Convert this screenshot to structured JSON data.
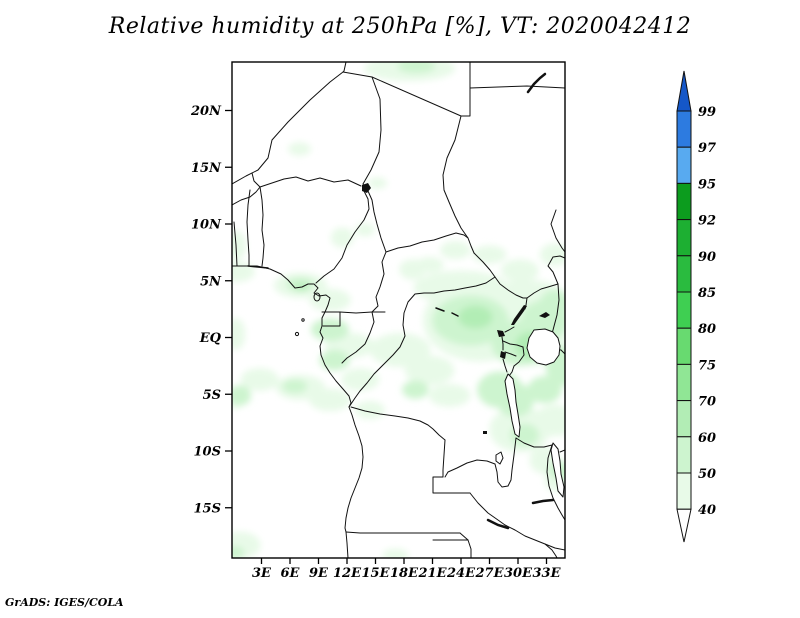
{
  "title": {
    "text": "Relative humidity at 250hPa [%], VT: 2020042412"
  },
  "credit": "GrADS: IGES/COLA",
  "map": {
    "lat_ticks": [
      {
        "value": 20,
        "label": "20N"
      },
      {
        "value": 15,
        "label": "15N"
      },
      {
        "value": 10,
        "label": "10N"
      },
      {
        "value": 5,
        "label": "5N"
      },
      {
        "value": 0,
        "label": "EQ"
      },
      {
        "value": -5,
        "label": "5S"
      },
      {
        "value": -10,
        "label": "10S"
      },
      {
        "value": -15,
        "label": "15S"
      }
    ],
    "lon_ticks": [
      {
        "value": 3,
        "label": "3E"
      },
      {
        "value": 6,
        "label": "6E"
      },
      {
        "value": 9,
        "label": "9E"
      },
      {
        "value": 12,
        "label": "12E"
      },
      {
        "value": 15,
        "label": "15E"
      },
      {
        "value": 18,
        "label": "18E"
      },
      {
        "value": 21,
        "label": "21E"
      },
      {
        "value": 24,
        "label": "24E"
      },
      {
        "value": 27,
        "label": "27E"
      },
      {
        "value": 30,
        "label": "30E"
      },
      {
        "value": 33,
        "label": "33E"
      }
    ]
  },
  "colorbar": {
    "tick_labels_top_to_bottom": [
      "99",
      "97",
      "95",
      "92",
      "90",
      "85",
      "80",
      "75",
      "70",
      "60",
      "50",
      "40"
    ],
    "band_colors_bottom_to_top": [
      "#ffffff",
      "#e8fae8",
      "#cdf4cf",
      "#b2edb5",
      "#90e695",
      "#68da70",
      "#3fcf52",
      "#2abb3f",
      "#1daf32",
      "#0c9c1e",
      "#58aaf0",
      "#2d7be0",
      "#1557c8"
    ]
  },
  "chart_data": {
    "type": "heatmap",
    "title": "Relative humidity at 250hPa [%]",
    "valid_time": "2020042412",
    "variable": "Relative humidity",
    "level_hPa": 250,
    "units": "%",
    "region": {
      "lon_range": [
        0,
        35
      ],
      "lat_range": [
        -19.5,
        24.5
      ]
    },
    "levels": [
      40,
      50,
      60,
      70,
      75,
      80,
      85,
      90,
      92,
      95,
      97,
      99
    ],
    "shaded_cells": [
      {
        "lon": 18.6,
        "lat": 23.7,
        "rx": 4.8,
        "ry": 1.1,
        "band": 1
      },
      {
        "lon": 19.3,
        "lat": 23.9,
        "rx": 2.0,
        "ry": 0.6,
        "band": 2
      },
      {
        "lon": 7.0,
        "lat": 16.6,
        "rx": 1.2,
        "ry": 0.6,
        "band": 1
      },
      {
        "lon": 15.2,
        "lat": 13.6,
        "rx": 1.0,
        "ry": 0.5,
        "band": 1
      },
      {
        "lon": 13.9,
        "lat": 9.5,
        "rx": 1.0,
        "ry": 0.6,
        "band": 1
      },
      {
        "lon": 11.5,
        "lat": 8.8,
        "rx": 1.2,
        "ry": 0.9,
        "band": 1
      },
      {
        "lon": 0.4,
        "lat": 8.1,
        "rx": 1.0,
        "ry": 1.3,
        "band": 1
      },
      {
        "lon": 23.4,
        "lat": 7.7,
        "rx": 1.6,
        "ry": 0.8,
        "band": 1
      },
      {
        "lon": 27.0,
        "lat": 7.3,
        "rx": 1.8,
        "ry": 0.8,
        "band": 1
      },
      {
        "lon": 20.7,
        "lat": 6.4,
        "rx": 1.5,
        "ry": 0.7,
        "band": 1
      },
      {
        "lon": 18.9,
        "lat": 6.0,
        "rx": 1.4,
        "ry": 0.9,
        "band": 1
      },
      {
        "lon": 30.2,
        "lat": 5.9,
        "rx": 2.0,
        "ry": 1.0,
        "band": 1
      },
      {
        "lon": 33.9,
        "lat": 7.3,
        "rx": 1.6,
        "ry": 1.0,
        "band": 1
      },
      {
        "lon": 7.1,
        "lat": 4.6,
        "rx": 2.8,
        "ry": 1.1,
        "band": 1
      },
      {
        "lon": 7.1,
        "lat": 4.7,
        "rx": 1.5,
        "ry": 0.6,
        "band": 2
      },
      {
        "lon": 7.2,
        "lat": 4.4,
        "rx": 0.8,
        "ry": 0.3,
        "band": 3
      },
      {
        "lon": 10.2,
        "lat": 3.3,
        "rx": 2.2,
        "ry": 1.0,
        "band": 1
      },
      {
        "lon": 0.5,
        "lat": 5.8,
        "rx": 1.8,
        "ry": 0.9,
        "band": 1
      },
      {
        "lon": 10.2,
        "lat": 0.7,
        "rx": 2.0,
        "ry": 1.0,
        "band": 2
      },
      {
        "lon": 12.3,
        "lat": -0.7,
        "rx": 2.6,
        "ry": 1.1,
        "band": 1
      },
      {
        "lon": 10.7,
        "lat": -2.0,
        "rx": 1.6,
        "ry": 0.9,
        "band": 2
      },
      {
        "lon": 13.4,
        "lat": -3.7,
        "rx": 2.0,
        "ry": 1.0,
        "band": 1
      },
      {
        "lon": 26.0,
        "lat": 1.5,
        "rx": 6.0,
        "ry": 3.6,
        "band": 1
      },
      {
        "lon": 31.6,
        "lat": 0.5,
        "rx": 3.6,
        "ry": 3.0,
        "band": 1
      },
      {
        "lon": 24.0,
        "lat": 4.4,
        "rx": 5.0,
        "ry": 1.5,
        "band": 1
      },
      {
        "lon": 31.0,
        "lat": 3.5,
        "rx": 4.0,
        "ry": 1.6,
        "band": 1
      },
      {
        "lon": 25.0,
        "lat": 1.5,
        "rx": 4.0,
        "ry": 2.2,
        "band": 2
      },
      {
        "lon": 30.2,
        "lat": -0.5,
        "rx": 3.0,
        "ry": 2.0,
        "band": 2
      },
      {
        "lon": 32.8,
        "lat": 1.5,
        "rx": 2.5,
        "ry": 1.8,
        "band": 2
      },
      {
        "lon": 25.5,
        "lat": 1.8,
        "rx": 1.8,
        "ry": 1.0,
        "band": 3
      },
      {
        "lon": 31.3,
        "lat": -0.7,
        "rx": 1.6,
        "ry": 1.2,
        "band": 3
      },
      {
        "lon": 33.9,
        "lat": 3.0,
        "rx": 1.6,
        "ry": 1.2,
        "band": 2
      },
      {
        "lon": 34.5,
        "lat": -2.5,
        "rx": 1.6,
        "ry": 1.8,
        "band": 2
      },
      {
        "lon": 17.6,
        "lat": -1.1,
        "rx": 3.2,
        "ry": 1.5,
        "band": 1
      },
      {
        "lon": 20.7,
        "lat": -2.9,
        "rx": 2.6,
        "ry": 1.3,
        "band": 1
      },
      {
        "lon": 19.2,
        "lat": -4.6,
        "rx": 1.4,
        "ry": 0.8,
        "band": 2
      },
      {
        "lon": 22.8,
        "lat": -5.1,
        "rx": 2.2,
        "ry": 1.0,
        "band": 1
      },
      {
        "lon": 28.1,
        "lat": -4.6,
        "rx": 2.4,
        "ry": 1.6,
        "band": 2
      },
      {
        "lon": 29.7,
        "lat": -5.5,
        "rx": 2.0,
        "ry": 1.5,
        "band": 2
      },
      {
        "lon": 32.8,
        "lat": -4.6,
        "rx": 1.8,
        "ry": 1.2,
        "band": 2
      },
      {
        "lon": 7.1,
        "lat": -4.4,
        "rx": 2.6,
        "ry": 1.1,
        "band": 1
      },
      {
        "lon": 6.5,
        "lat": -4.3,
        "rx": 1.3,
        "ry": 0.6,
        "band": 2
      },
      {
        "lon": 2.8,
        "lat": -3.7,
        "rx": 2.0,
        "ry": 1.0,
        "band": 1
      },
      {
        "lon": 0.7,
        "lat": -5.1,
        "rx": 1.2,
        "ry": 0.9,
        "band": 2
      },
      {
        "lon": 0.3,
        "lat": -5.3,
        "rx": 0.8,
        "ry": 1.0,
        "band": 1
      },
      {
        "lon": 0.3,
        "lat": 0.3,
        "rx": 1.0,
        "ry": 1.4,
        "band": 1
      },
      {
        "lon": 10.2,
        "lat": -5.5,
        "rx": 2.2,
        "ry": 1.0,
        "band": 1
      },
      {
        "lon": 14.4,
        "lat": -6.4,
        "rx": 1.6,
        "ry": 0.8,
        "band": 1
      },
      {
        "lon": 30.2,
        "lat": -8.1,
        "rx": 3.2,
        "ry": 2.0,
        "band": 1
      },
      {
        "lon": 30.7,
        "lat": -8.6,
        "rx": 1.5,
        "ry": 1.0,
        "band": 2
      },
      {
        "lon": 33.9,
        "lat": -7.3,
        "rx": 2.2,
        "ry": 1.4,
        "band": 1
      },
      {
        "lon": 32.8,
        "lat": -10.8,
        "rx": 1.6,
        "ry": 1.2,
        "band": 1
      },
      {
        "lon": 34.4,
        "lat": -11.7,
        "rx": 1.2,
        "ry": 0.8,
        "band": 2
      },
      {
        "lon": 34.2,
        "lat": -12.6,
        "rx": 1.4,
        "ry": 1.0,
        "band": 1
      },
      {
        "lon": 0.7,
        "lat": -18.3,
        "rx": 2.2,
        "ry": 1.2,
        "band": 1
      },
      {
        "lon": 0.2,
        "lat": -19.0,
        "rx": 1.0,
        "ry": 0.6,
        "band": 2
      },
      {
        "lon": 17.1,
        "lat": -19.2,
        "rx": 1.4,
        "ry": 0.6,
        "band": 1
      }
    ]
  }
}
